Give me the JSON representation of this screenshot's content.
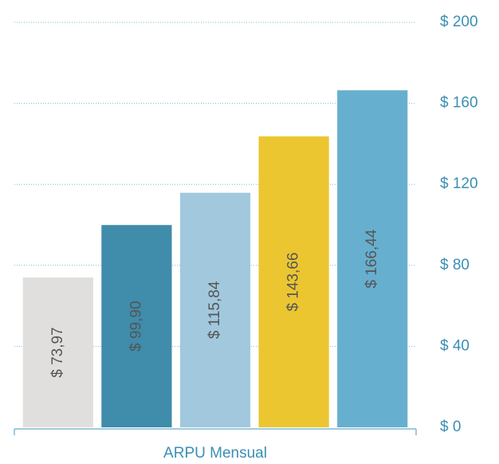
{
  "chart_data": {
    "type": "bar",
    "x_label": "ARPU Mensual",
    "categories": [
      null,
      null,
      null,
      null,
      null
    ],
    "values": [
      73.97,
      99.9,
      115.84,
      143.66,
      166.44
    ],
    "value_labels": [
      "$ 73,97",
      "$ 99,90",
      "$ 115,84",
      "$ 143,66",
      "$ 166,44"
    ],
    "colors": [
      "#e0dfde",
      "#3f8cab",
      "#a2c8de",
      "#ecc630",
      "#67afcf"
    ],
    "ylim": [
      0,
      200
    ],
    "yticks": [
      {
        "value": 0,
        "label": "$ 0"
      },
      {
        "value": 40,
        "label": "$ 40"
      },
      {
        "value": 80,
        "label": "$ 80"
      },
      {
        "value": 120,
        "label": "$ 120"
      },
      {
        "value": 160,
        "label": "$ 160"
      },
      {
        "value": 200,
        "label": "$ 200"
      }
    ],
    "grid": true
  }
}
